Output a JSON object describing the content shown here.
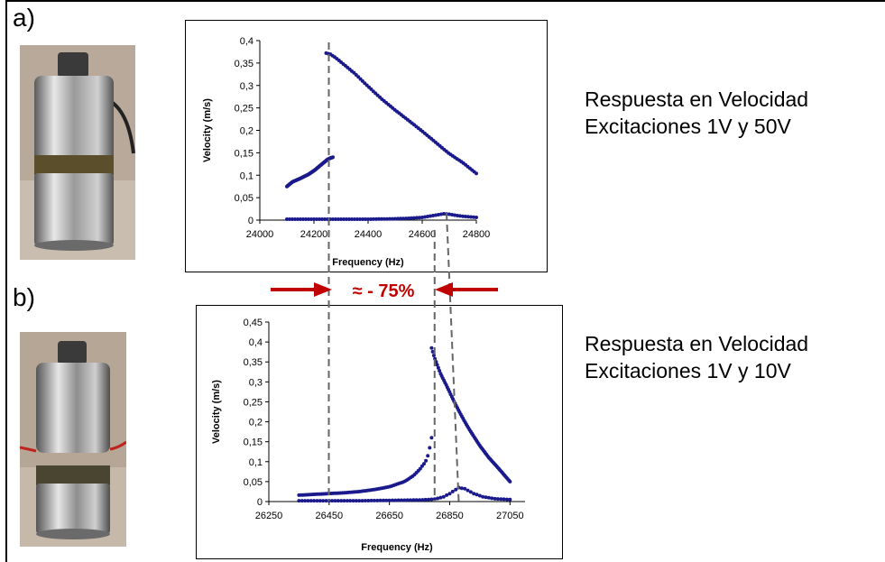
{
  "panels": [
    {
      "label": "a)",
      "caption_line1": "Respuesta en Velocidad",
      "caption_line2": "Excitaciones 1V y 50V",
      "photo_icon": "transducer-photo-icon"
    },
    {
      "label": "b)",
      "caption_line1": "Respuesta en Velocidad",
      "caption_line2": "Excitaciones 1V y 10V",
      "photo_icon": "transducer-with-wires-photo-icon"
    }
  ],
  "annotation": {
    "text": "≈ - 75%",
    "color": "#c00000"
  },
  "colors": {
    "series": "#1a1a8c",
    "guide": "#666666",
    "arrow": "#c00000"
  },
  "chart_data": [
    {
      "type": "scatter",
      "title": "",
      "xlabel": "Frequency (Hz)",
      "ylabel": "Velocity (m/s)",
      "xlim": [
        24000,
        24800
      ],
      "ylim": [
        0,
        0.4
      ],
      "xticks": [
        24000,
        24200,
        24400,
        24600,
        24800
      ],
      "xtick_labels": [
        "24000",
        "24200",
        "24400",
        "24600",
        "24800"
      ],
      "yticks": [
        0,
        0.05,
        0.1,
        0.15,
        0.2,
        0.25,
        0.3,
        0.35,
        0.4
      ],
      "ytick_labels": [
        "0",
        "0,05",
        "0,1",
        "0,15",
        "0,2",
        "0,25",
        "0,3",
        "0,35",
        "0,4"
      ],
      "series": [
        {
          "x": [
            24100,
            24120,
            24150,
            24180,
            24200,
            24220,
            24240,
            24250,
            24260,
            24270
          ],
          "y": [
            0.075,
            0.085,
            0.093,
            0.102,
            0.11,
            0.12,
            0.13,
            0.135,
            0.138,
            0.14
          ]
        },
        {
          "x": [
            24245,
            24260,
            24280,
            24300,
            24350,
            24400,
            24450,
            24500,
            24550,
            24600,
            24650,
            24700,
            24750,
            24800
          ],
          "y": [
            0.372,
            0.37,
            0.362,
            0.352,
            0.327,
            0.298,
            0.27,
            0.245,
            0.222,
            0.198,
            0.173,
            0.148,
            0.128,
            0.104
          ]
        },
        {
          "x": [
            24100,
            24200,
            24300,
            24400,
            24500,
            24550,
            24600,
            24630,
            24660,
            24680,
            24700,
            24730,
            24760,
            24800
          ],
          "y": [
            0.002,
            0.002,
            0.002,
            0.002,
            0.003,
            0.004,
            0.006,
            0.009,
            0.012,
            0.014,
            0.013,
            0.01,
            0.008,
            0.006
          ]
        }
      ],
      "guides_x": [
        24255,
        24690
      ]
    },
    {
      "type": "scatter",
      "title": "",
      "xlabel": "Frequency (Hz)",
      "ylabel": "Velocity (m/s)",
      "xlim": [
        26250,
        27100
      ],
      "ylim": [
        0,
        0.45
      ],
      "xticks": [
        26250,
        26450,
        26650,
        26850,
        27050
      ],
      "xtick_labels": [
        "26250",
        "26450",
        "26650",
        "26850",
        "27050"
      ],
      "yticks": [
        0,
        0.05,
        0.1,
        0.15,
        0.2,
        0.25,
        0.3,
        0.35,
        0.4,
        0.45
      ],
      "ytick_labels": [
        "0",
        "0,05",
        "0,1",
        "0,15",
        "0,2",
        "0,25",
        "0,3",
        "0,35",
        "0,4",
        "0,45"
      ],
      "series": [
        {
          "x": [
            26350,
            26400,
            26450,
            26500,
            26550,
            26600,
            26650,
            26700,
            26730,
            26750,
            26770,
            26780,
            26790
          ],
          "y": [
            0.016,
            0.018,
            0.02,
            0.022,
            0.025,
            0.03,
            0.037,
            0.05,
            0.065,
            0.08,
            0.1,
            0.12,
            0.16
          ]
        },
        {
          "x": [
            26790,
            26800,
            26810,
            26820,
            26840,
            26860,
            26880,
            26900,
            26920,
            26950,
            26980,
            27010,
            27050
          ],
          "y": [
            0.385,
            0.36,
            0.34,
            0.32,
            0.29,
            0.258,
            0.228,
            0.2,
            0.175,
            0.14,
            0.11,
            0.085,
            0.05
          ]
        },
        {
          "x": [
            26350,
            26450,
            26550,
            26650,
            26750,
            26800,
            26830,
            26850,
            26870,
            26880,
            26900,
            26930,
            26960,
            27000,
            27050
          ],
          "y": [
            0.002,
            0.002,
            0.002,
            0.003,
            0.004,
            0.006,
            0.012,
            0.02,
            0.03,
            0.035,
            0.032,
            0.02,
            0.012,
            0.007,
            0.005
          ]
        }
      ],
      "guides_x": [
        26450,
        26800,
        26880
      ]
    }
  ]
}
